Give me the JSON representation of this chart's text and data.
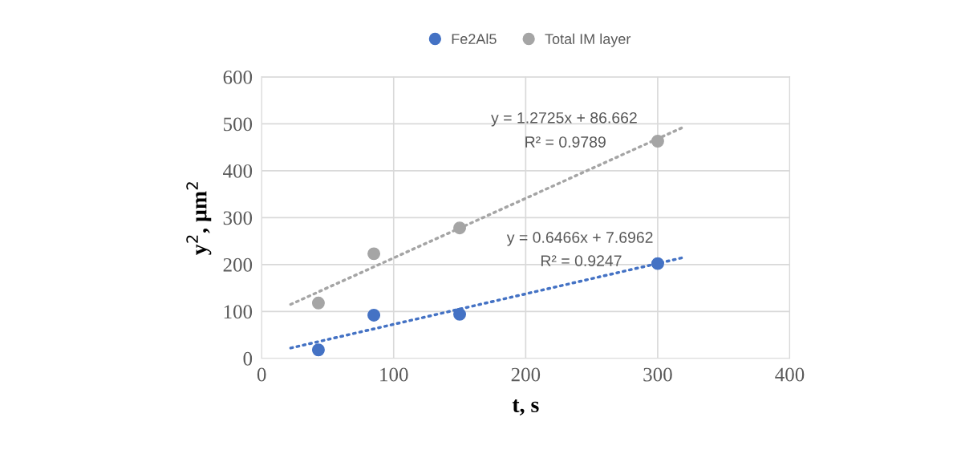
{
  "chart_data": {
    "type": "scatter",
    "xlabel": "t, s",
    "ylabel": "y$^{2}$, µm$^{2}$",
    "xlim": [
      0,
      400
    ],
    "xticks": [
      0,
      100,
      200,
      300,
      400
    ],
    "ylim": [
      0,
      600
    ],
    "yticks": [
      0,
      100,
      200,
      300,
      400,
      500,
      600
    ],
    "grid": true,
    "legend": "top",
    "marker": "circle",
    "series": [
      {
        "name": "Fe2Al5",
        "color": "#4472c4",
        "x": [
          43,
          85,
          150,
          300
        ],
        "values": [
          18,
          92,
          94,
          202
        ]
      },
      {
        "name": "Total IM layer",
        "color": "#a5a5a5",
        "x": [
          43,
          85,
          150,
          300
        ],
        "values": [
          118,
          223,
          278,
          463
        ]
      },
      {
        "type": "line",
        "marker": "none",
        "color": "#4472c4",
        "line_style": "dotted",
        "x": [
          22,
          318
        ],
        "values": [
          22,
          214
        ]
      },
      {
        "type": "line",
        "marker": "none",
        "color": "#a5a5a5",
        "line_style": "dotted",
        "x": [
          22,
          318
        ],
        "values": [
          115,
          491
        ]
      }
    ],
    "annotations": [
      "y = 1.2725x + 86.662",
      "R² = 0.9789",
      "y = 0.6466x + 7.6962",
      "R² = 0.9247"
    ]
  }
}
